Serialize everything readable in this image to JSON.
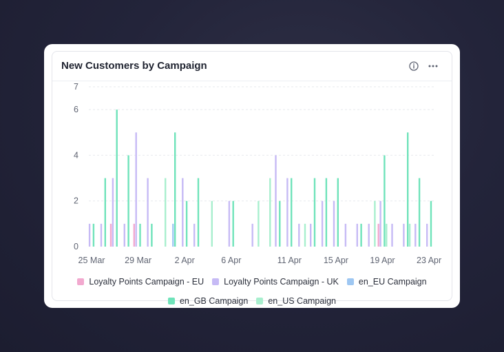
{
  "card": {
    "title": "New Customers by Campaign",
    "info_icon": "info-icon",
    "more_icon": "more-horizontal-icon"
  },
  "chart_data": {
    "type": "bar",
    "title": "New Customers by Campaign",
    "xlabel": "",
    "ylabel": "",
    "ylim": [
      0,
      7
    ],
    "yticks": [
      0,
      2,
      4,
      6,
      7
    ],
    "grid": true,
    "legend_position": "bottom",
    "x_start": "2024-03-25",
    "x_end": "2024-04-23",
    "xtick_labels": [
      "25 Mar",
      "29 Mar",
      "2 Apr",
      "6 Apr",
      "11 Apr",
      "15 Apr",
      "19 Apr",
      "23 Apr"
    ],
    "xtick_days": [
      0,
      4,
      8,
      12,
      17,
      21,
      25,
      29
    ],
    "series": [
      {
        "name": "Loyalty Points Campaign - EU",
        "color": "#f2a9cf",
        "points": [
          [
            2,
            1
          ],
          [
            4,
            1
          ],
          [
            25,
            1
          ]
        ]
      },
      {
        "name": "Loyalty Points Campaign - UK",
        "color": "#c6baf5",
        "points": [
          [
            0,
            1
          ],
          [
            1,
            1
          ],
          [
            2,
            3
          ],
          [
            3,
            1
          ],
          [
            4,
            5
          ],
          [
            5,
            3
          ],
          [
            8,
            3
          ],
          [
            9,
            1
          ],
          [
            12,
            2
          ],
          [
            14,
            1
          ],
          [
            16,
            4
          ],
          [
            17,
            3
          ],
          [
            18,
            1
          ],
          [
            19,
            1
          ],
          [
            20,
            2
          ],
          [
            21,
            2
          ],
          [
            22,
            1
          ],
          [
            23,
            1
          ],
          [
            24,
            1
          ],
          [
            25,
            2
          ],
          [
            26,
            1
          ],
          [
            27,
            1
          ],
          [
            28,
            1
          ],
          [
            29,
            1
          ]
        ]
      },
      {
        "name": "en_EU Campaign",
        "color": "#9ec7f2",
        "points": [
          [
            7,
            1
          ]
        ]
      },
      {
        "name": "en_GB Campaign",
        "color": "#6fe3ba",
        "points": [
          [
            0,
            1
          ],
          [
            1,
            3
          ],
          [
            2,
            6
          ],
          [
            3,
            4
          ],
          [
            4,
            1
          ],
          [
            5,
            1
          ],
          [
            7,
            5
          ],
          [
            8,
            2
          ],
          [
            9,
            3
          ],
          [
            12,
            2
          ],
          [
            16,
            2
          ],
          [
            17,
            3
          ],
          [
            19,
            3
          ],
          [
            20,
            3
          ],
          [
            21,
            3
          ],
          [
            23,
            1
          ],
          [
            25,
            4
          ],
          [
            27,
            5
          ],
          [
            28,
            3
          ],
          [
            29,
            2
          ]
        ]
      },
      {
        "name": "en_US Campaign",
        "color": "#a8efce",
        "points": [
          [
            6,
            3
          ],
          [
            10,
            2
          ],
          [
            14,
            2
          ],
          [
            15,
            3
          ],
          [
            18,
            1
          ],
          [
            24,
            2
          ],
          [
            25,
            1
          ],
          [
            27,
            1
          ]
        ]
      }
    ]
  }
}
